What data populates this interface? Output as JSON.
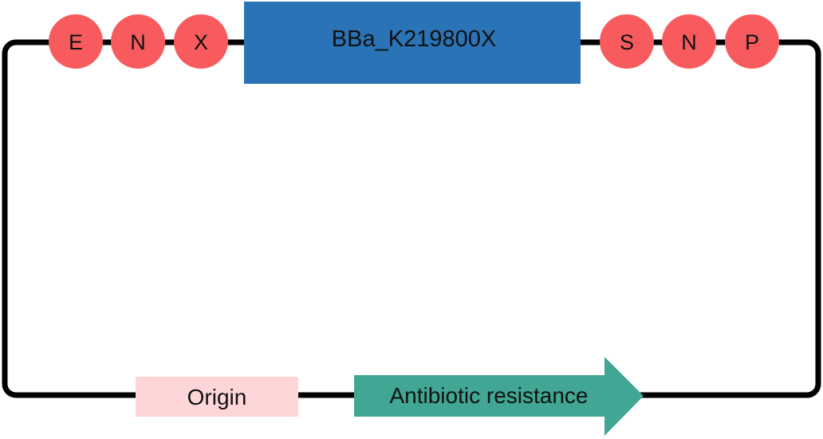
{
  "plasmid": {
    "left_sites": [
      "E",
      "N",
      "X"
    ],
    "insert": {
      "label": "BBa_K219800X",
      "color": "#2a73b6"
    },
    "right_sites": [
      "S",
      "N",
      "P"
    ],
    "origin": {
      "label": "Origin",
      "color": "#ffd6d8"
    },
    "resistance": {
      "label": "Antibiotic resistance",
      "color": "#41a694"
    },
    "site_color": "#f75b5e",
    "backbone_color": "#000000"
  }
}
